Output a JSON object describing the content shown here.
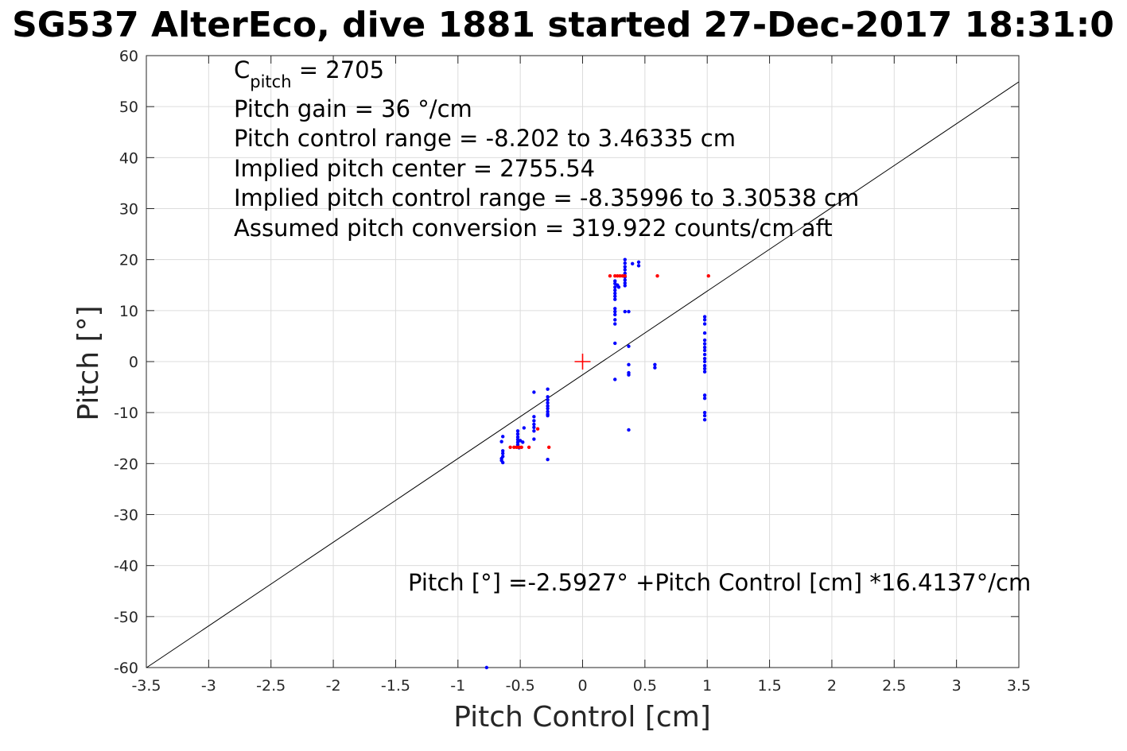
{
  "chart_data": {
    "type": "scatter",
    "title": "SG537 AlterEco, dive 1881 started 27-Dec-2017 18:31:0",
    "xlabel": "Pitch Control [cm]",
    "ylabel": "Pitch [°]",
    "xlim": [
      -3.5,
      3.5
    ],
    "ylim": [
      -60,
      60
    ],
    "x_ticks": [
      "-3.5",
      "-3",
      "-2.5",
      "-2",
      "-1.5",
      "-1",
      "-0.5",
      "0",
      "0.5",
      "1",
      "1.5",
      "2",
      "2.5",
      "3",
      "3.5"
    ],
    "y_ticks": [
      "60",
      "50",
      "40",
      "30",
      "20",
      "10",
      "0",
      "-10",
      "-20",
      "-30",
      "-40",
      "-50",
      "-60"
    ],
    "grid": true,
    "annotations": {
      "c_pitch_symbol": "C",
      "c_pitch_subscript": "pitch",
      "c_pitch_value": " = 2705",
      "pitch_gain": "Pitch gain = 36 °/cm",
      "control_range": "Pitch control range = -8.202 to 3.46335 cm",
      "implied_center": "Implied pitch center = 2755.54",
      "implied_range": "Implied pitch control range = -8.35996 to 3.30538 cm",
      "conversion": "Assumed pitch conversion = 319.922 counts/cm aft",
      "fit_equation": "Pitch [°] =-2.5927° +Pitch Control [cm] *16.4137°/cm"
    },
    "fit_line": {
      "intercept": -2.5927,
      "slope": 16.4137,
      "color": "#000000"
    },
    "center_marker": {
      "x": 0,
      "y": 0,
      "color": "#ff0000"
    },
    "series": [
      {
        "color": "#0000ff",
        "points": [
          [
            -0.65,
            -15.7
          ],
          [
            -0.64,
            -14.7
          ],
          [
            -0.64,
            -17.5
          ],
          [
            -0.64,
            -18.0
          ],
          [
            -0.65,
            -19.0
          ],
          [
            -0.65,
            -19.4
          ],
          [
            -0.64,
            -19.8
          ],
          [
            -0.64,
            -18.6
          ],
          [
            -0.52,
            -13.6
          ],
          [
            -0.52,
            -14.2
          ],
          [
            -0.52,
            -14.8
          ],
          [
            -0.52,
            -15.3
          ],
          [
            -0.52,
            -15.8
          ],
          [
            -0.52,
            -16.3
          ],
          [
            -0.51,
            -16.9
          ],
          [
            -0.5,
            -15.5
          ],
          [
            -0.47,
            -13.0
          ],
          [
            -0.48,
            -15.8
          ],
          [
            -0.39,
            -6.0
          ],
          [
            -0.39,
            -10.8
          ],
          [
            -0.39,
            -11.6
          ],
          [
            -0.39,
            -12.3
          ],
          [
            -0.39,
            -12.9
          ],
          [
            -0.39,
            -13.6
          ],
          [
            -0.39,
            -15.2
          ],
          [
            -0.28,
            -5.4
          ],
          [
            -0.28,
            -6.9
          ],
          [
            -0.28,
            -7.5
          ],
          [
            -0.28,
            -8.1
          ],
          [
            -0.28,
            -8.7
          ],
          [
            -0.28,
            -9.2
          ],
          [
            -0.28,
            -9.8
          ],
          [
            -0.28,
            -10.3
          ],
          [
            -0.28,
            -10.6
          ],
          [
            -0.28,
            -19.2
          ],
          [
            0.26,
            15.8
          ],
          [
            0.26,
            15.3
          ],
          [
            0.26,
            14.6
          ],
          [
            0.26,
            14.0
          ],
          [
            0.26,
            13.4
          ],
          [
            0.26,
            12.8
          ],
          [
            0.26,
            12.2
          ],
          [
            0.26,
            10.4
          ],
          [
            0.26,
            9.8
          ],
          [
            0.26,
            9.2
          ],
          [
            0.26,
            8.2
          ],
          [
            0.26,
            7.4
          ],
          [
            0.26,
            3.6
          ],
          [
            0.26,
            -3.5
          ],
          [
            0.28,
            15.0
          ],
          [
            0.29,
            14.6
          ],
          [
            0.34,
            20.0
          ],
          [
            0.34,
            19.3
          ],
          [
            0.34,
            18.6
          ],
          [
            0.34,
            18.0
          ],
          [
            0.34,
            17.3
          ],
          [
            0.34,
            16.6
          ],
          [
            0.34,
            16.0
          ],
          [
            0.34,
            15.4
          ],
          [
            0.34,
            14.9
          ],
          [
            0.34,
            9.8
          ],
          [
            0.37,
            9.8
          ],
          [
            0.37,
            3.0
          ],
          [
            0.37,
            -0.6
          ],
          [
            0.37,
            -2.2
          ],
          [
            0.37,
            -2.6
          ],
          [
            0.37,
            -13.4
          ],
          [
            0.4,
            19.2
          ],
          [
            0.45,
            19.5
          ],
          [
            0.45,
            18.8
          ],
          [
            0.58,
            -0.6
          ],
          [
            0.58,
            -1.2
          ],
          [
            0.98,
            8.8
          ],
          [
            0.98,
            8.2
          ],
          [
            0.98,
            7.4
          ],
          [
            0.98,
            5.6
          ],
          [
            0.98,
            4.2
          ],
          [
            0.98,
            3.5
          ],
          [
            0.98,
            2.8
          ],
          [
            0.98,
            2.2
          ],
          [
            0.98,
            1.4
          ],
          [
            0.98,
            0.6
          ],
          [
            0.98,
            0.0
          ],
          [
            0.98,
            -0.8
          ],
          [
            0.98,
            -1.4
          ],
          [
            0.98,
            -2.0
          ],
          [
            0.98,
            -6.6
          ],
          [
            0.98,
            -7.2
          ],
          [
            0.98,
            -10.0
          ],
          [
            0.98,
            -10.6
          ],
          [
            0.98,
            -11.4
          ],
          [
            -0.77,
            -60.0
          ]
        ]
      },
      {
        "color": "#ff0000",
        "points": [
          [
            -0.58,
            -16.8
          ],
          [
            -0.55,
            -16.8
          ],
          [
            -0.53,
            -16.8
          ],
          [
            -0.51,
            -16.8
          ],
          [
            -0.49,
            -16.8
          ],
          [
            -0.43,
            -16.8
          ],
          [
            -0.36,
            -13.2
          ],
          [
            -0.27,
            -16.8
          ],
          [
            0.22,
            16.8
          ],
          [
            0.26,
            16.8
          ],
          [
            0.28,
            16.8
          ],
          [
            0.3,
            16.8
          ],
          [
            0.32,
            16.8
          ],
          [
            0.34,
            16.8
          ],
          [
            0.6,
            16.8
          ],
          [
            1.01,
            16.8
          ]
        ]
      }
    ]
  }
}
